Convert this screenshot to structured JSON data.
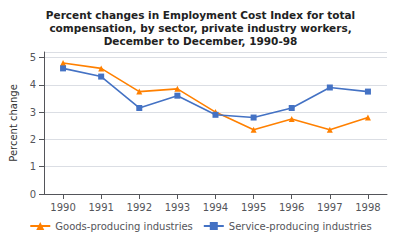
{
  "chart_data": {
    "type": "line",
    "title": "Percent changes in Employment Cost Index for total\ncompensation, by sector, private industry workers,\nDecember to December, 1990-98",
    "ylabel": "Percent change",
    "x": [
      1990,
      1991,
      1992,
      1993,
      1994,
      1995,
      1996,
      1997,
      1998
    ],
    "series": [
      {
        "name": "Goods-producing industries",
        "color": "#FF8000",
        "marker": "triangle",
        "values": [
          4.8,
          4.6,
          3.75,
          3.85,
          3.0,
          2.35,
          2.75,
          2.35,
          2.8
        ]
      },
      {
        "name": "Service-producing industries",
        "color": "#4472C4",
        "marker": "square",
        "values": [
          4.6,
          4.3,
          3.15,
          3.6,
          2.9,
          2.8,
          3.15,
          3.9,
          3.75
        ]
      }
    ],
    "xlim": [
      1989.5,
      1998.5
    ],
    "xticks": [
      1990,
      1991,
      1992,
      1993,
      1994,
      1995,
      1996,
      1997,
      1998
    ],
    "ylim": [
      0,
      5.2
    ],
    "yticks": [
      0,
      1,
      2,
      3,
      4,
      5
    ],
    "grid": "y",
    "legend": "bottom"
  }
}
